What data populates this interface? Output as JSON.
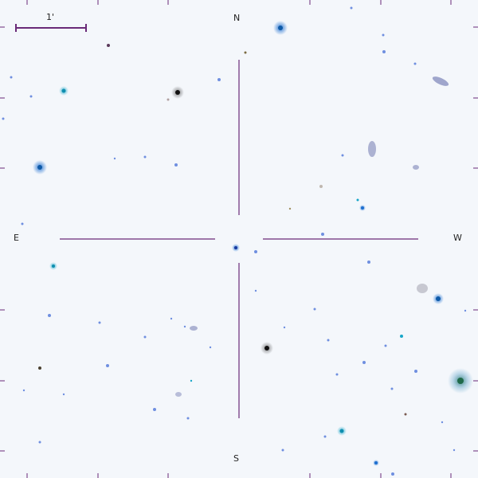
{
  "labels": {
    "north": "N",
    "south": "S",
    "east": "E",
    "west": "W",
    "scale_bar": "1'"
  },
  "colors": {
    "background": "#f4f7fb",
    "crosshair": "#6a2a78",
    "scale_bar": "#6a2a78",
    "tick": "#6a2a78",
    "star_blue": "#1e6fd0",
    "star_cyan": "#18a6c8",
    "star_dark": "#111111",
    "star_green": "#1f6a4a",
    "star_faint": "#8fa8e0",
    "galaxy": "#7b83b8"
  }
}
